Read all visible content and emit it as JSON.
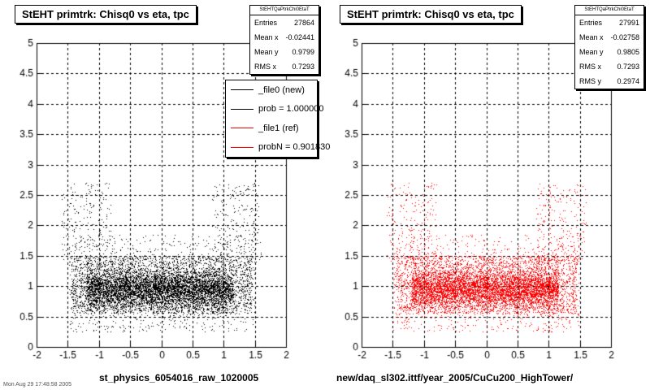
{
  "chart_data": [
    {
      "type": "scatter",
      "title": "StEHT primtrk: Chisq0 vs eta, tpc",
      "xlabel": "st_physics_6054016_raw_1020005",
      "ylabel": "",
      "xlim": [
        -2,
        2
      ],
      "ylim": [
        0,
        5
      ],
      "x_ticks": [
        "-2",
        "-1.5",
        "-1",
        "-0.5",
        "0",
        "0.5",
        "1",
        "1.5",
        "2"
      ],
      "y_ticks": [
        "0",
        "0.5",
        "1",
        "1.5",
        "2",
        "2.5",
        "3",
        "3.5",
        "4",
        "4.5",
        "5"
      ],
      "grid": true,
      "marker_color": "#000000",
      "stats": {
        "name": "StEHTQaPtrkChi0EtaT",
        "rows": [
          {
            "label": "Entries",
            "value": "27864"
          },
          {
            "label": "Mean x",
            "value": "-0.02441"
          },
          {
            "label": "Mean y",
            "value": "0.9799"
          },
          {
            "label": "RMS x",
            "value": "0.7293"
          }
        ]
      },
      "legend": {
        "placement": "top-right",
        "entries": [
          {
            "label": "_file0 (new)",
            "color": "#000000"
          },
          {
            "label": "prob = 1.000000",
            "color": "#000000"
          },
          {
            "label": "_file1 (ref)",
            "color": "#ff0000"
          },
          {
            "label": "probN = 0.901830",
            "color": "#ff0000"
          }
        ]
      }
    },
    {
      "type": "scatter",
      "title": "StEHT primtrk: Chisq0 vs eta, tpc",
      "xlabel": "new/daq_sl302.ittf/year_2005/CuCu200_HighTower/",
      "ylabel": "",
      "xlim": [
        -2,
        2
      ],
      "ylim": [
        0,
        5
      ],
      "x_ticks": [
        "-2",
        "-1.5",
        "-1",
        "-0.5",
        "0",
        "0.5",
        "1",
        "1.5",
        "2"
      ],
      "y_ticks": [
        "0",
        "0.5",
        "1",
        "1.5",
        "2",
        "2.5",
        "3",
        "3.5",
        "4",
        "4.5",
        "5"
      ],
      "grid": true,
      "marker_color": "#ff0000",
      "stats": {
        "name": "StEHTQaPtrkChi0EtaT",
        "rows": [
          {
            "label": "Entries",
            "value": "27991"
          },
          {
            "label": "Mean x",
            "value": "-0.02758"
          },
          {
            "label": "Mean y",
            "value": "0.9805"
          },
          {
            "label": "RMS x",
            "value": "0.7293"
          },
          {
            "label": "RMS y",
            "value": "0.2974"
          }
        ]
      }
    }
  ],
  "footer_text": "Mon Aug 29 17:48:58 2005"
}
